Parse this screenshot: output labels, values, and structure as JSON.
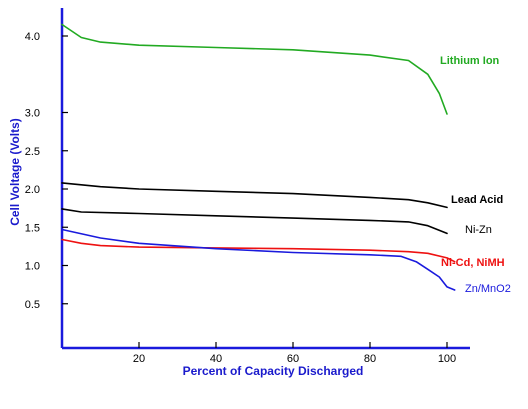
{
  "chart_data": {
    "type": "line",
    "xlabel": "Percent of Capacity Discharged",
    "ylabel": "Cell Voltage (Volts)",
    "xlim": [
      0,
      108
    ],
    "ylim": [
      0,
      4.25
    ],
    "x_ticks": [
      20,
      40,
      60,
      80,
      100
    ],
    "x_tick_labels": [
      "20",
      "40",
      "60",
      "80",
      "100"
    ],
    "y_ticks": [
      0.5,
      1.0,
      1.5,
      2.0,
      2.5,
      3.0,
      4.0
    ],
    "y_tick_labels": [
      "0.5",
      "1.0",
      "1.5",
      "2.0",
      "2.5",
      "3.0",
      "4.0"
    ],
    "grid": false,
    "series": [
      {
        "name": "Lithium Ion",
        "color": "#22aa22",
        "x": [
          0,
          5,
          10,
          20,
          40,
          60,
          80,
          90,
          95,
          98,
          100
        ],
        "y": [
          4.15,
          3.98,
          3.92,
          3.88,
          3.85,
          3.82,
          3.75,
          3.68,
          3.5,
          3.25,
          2.98
        ]
      },
      {
        "name": "Lead Acid",
        "color": "#000000",
        "x": [
          0,
          10,
          20,
          40,
          60,
          80,
          90,
          95,
          100
        ],
        "y": [
          2.08,
          2.03,
          2.0,
          1.97,
          1.94,
          1.89,
          1.86,
          1.82,
          1.76
        ]
      },
      {
        "name": "Ni-Zn",
        "color": "#000000",
        "x": [
          0,
          5,
          20,
          40,
          60,
          80,
          90,
          95,
          100
        ],
        "y": [
          1.74,
          1.7,
          1.68,
          1.65,
          1.62,
          1.59,
          1.57,
          1.52,
          1.42
        ]
      },
      {
        "name": "Ni-Cd,  NiMH",
        "color": "#ee1111",
        "x": [
          0,
          5,
          10,
          20,
          40,
          60,
          80,
          90,
          95,
          100,
          102
        ],
        "y": [
          1.34,
          1.29,
          1.26,
          1.24,
          1.23,
          1.22,
          1.2,
          1.18,
          1.16,
          1.1,
          1.05
        ]
      },
      {
        "name": "Zn/MnO2",
        "color": "#1a1add",
        "x": [
          0,
          10,
          20,
          40,
          60,
          80,
          88,
          92,
          95,
          98,
          100,
          102
        ],
        "y": [
          1.47,
          1.36,
          1.29,
          1.22,
          1.17,
          1.14,
          1.12,
          1.05,
          0.95,
          0.85,
          0.72,
          0.68
        ]
      }
    ]
  }
}
